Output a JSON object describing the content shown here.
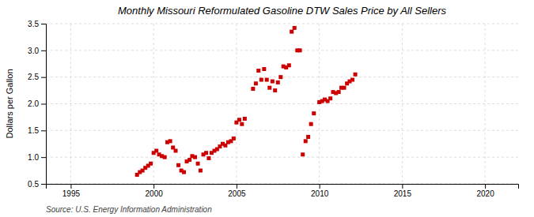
{
  "chart_data": {
    "type": "scatter",
    "title": "Monthly Missouri Reformulated Gasoline DTW Sales Price by All Sellers",
    "ylabel": "Dollars per Gallon",
    "source": "Source: U.S. Energy Information Administration",
    "color": "#cc0000",
    "marker": "square",
    "grid": true,
    "xlim": [
      1993.5,
      2022
    ],
    "ylim": [
      0.5,
      3.5
    ],
    "xticks": [
      1995,
      2000,
      2005,
      2010,
      2015,
      2020
    ],
    "yticks": [
      0.5,
      {
        "value": 1.0,
        "label": "1.0"
      },
      1.5,
      {
        "value": 2.0,
        "label": "2.0"
      },
      2.5,
      {
        "value": 3.0,
        "label": "3.0"
      },
      3.5
    ],
    "x": [
      1999.0,
      1999.17,
      1999.33,
      1999.5,
      1999.67,
      1999.83,
      2000.0,
      2000.17,
      2000.33,
      2000.5,
      2000.67,
      2000.83,
      2001.0,
      2001.17,
      2001.33,
      2001.5,
      2001.67,
      2001.83,
      2002.0,
      2002.17,
      2002.33,
      2002.5,
      2002.67,
      2002.83,
      2003.0,
      2003.17,
      2003.33,
      2003.5,
      2003.67,
      2003.83,
      2004.0,
      2004.17,
      2004.33,
      2004.5,
      2004.67,
      2004.83,
      2005.0,
      2005.17,
      2005.33,
      2005.5,
      2006.0,
      2006.17,
      2006.33,
      2006.5,
      2006.67,
      2006.83,
      2007.0,
      2007.17,
      2007.33,
      2007.5,
      2007.67,
      2007.83,
      2008.0,
      2008.17,
      2008.33,
      2008.5,
      2008.67,
      2008.83,
      2009.0,
      2009.17,
      2009.33,
      2009.5,
      2009.67,
      2010.0,
      2010.17,
      2010.33,
      2010.5,
      2010.67,
      2010.83,
      2011.0,
      2011.17,
      2011.33,
      2011.5,
      2011.67,
      2011.83,
      2012.0,
      2012.17
    ],
    "values": [
      0.67,
      0.72,
      0.75,
      0.8,
      0.84,
      0.88,
      1.08,
      1.12,
      1.05,
      1.02,
      1.0,
      1.28,
      1.3,
      1.18,
      1.12,
      0.85,
      0.75,
      0.72,
      0.92,
      0.95,
      1.02,
      1.0,
      0.88,
      0.75,
      1.05,
      1.08,
      0.98,
      1.08,
      1.12,
      1.15,
      1.2,
      1.25,
      1.22,
      1.28,
      1.3,
      1.35,
      1.65,
      1.7,
      1.62,
      1.72,
      2.28,
      2.38,
      2.62,
      2.45,
      2.65,
      2.45,
      2.3,
      2.42,
      2.25,
      2.4,
      2.5,
      2.7,
      2.68,
      2.72,
      3.35,
      3.42,
      3.0,
      3.0,
      1.05,
      1.3,
      1.38,
      1.62,
      1.82,
      2.03,
      2.05,
      2.08,
      2.05,
      2.1,
      2.22,
      2.2,
      2.22,
      2.3,
      2.3,
      2.38,
      2.42,
      2.45,
      2.55
    ]
  }
}
